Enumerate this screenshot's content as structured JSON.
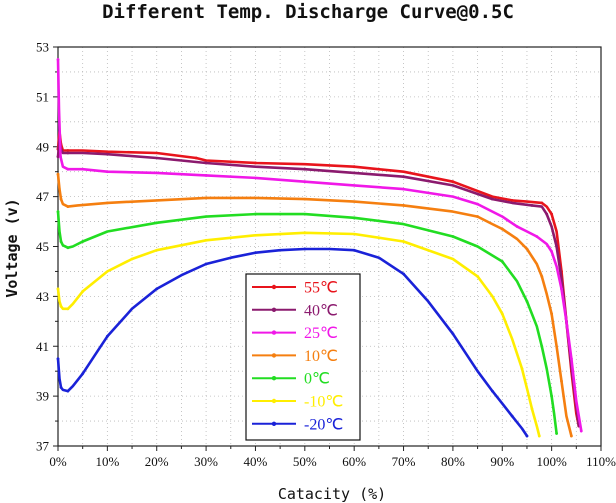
{
  "chart_data": {
    "type": "line",
    "title": "Different Temp. Discharge Curve@0.5C",
    "xlabel": "Catacity (%)",
    "ylabel": "Voltage (v)",
    "xlim": [
      0,
      110
    ],
    "ylim": [
      37,
      53
    ],
    "xticks": [
      "0%",
      "10%",
      "20%",
      "30%",
      "40%",
      "50%",
      "60%",
      "70%",
      "80%",
      "90%",
      "100%",
      "110%"
    ],
    "yticks": [
      "37",
      "39",
      "41",
      "43",
      "45",
      "47",
      "49",
      "51",
      "53"
    ],
    "grid": true,
    "legend_position": "bottom-center",
    "series": [
      {
        "name": "55℃",
        "color": "#e8141c",
        "x": [
          0,
          0.3,
          0.6,
          1,
          2,
          5,
          10,
          20,
          28,
          30,
          40,
          50,
          60,
          70,
          80,
          88,
          92,
          95,
          98,
          99,
          100,
          101,
          102,
          103,
          104,
          105,
          105.5
        ],
        "y": [
          48.9,
          49.6,
          49.1,
          48.85,
          48.85,
          48.85,
          48.8,
          48.75,
          48.55,
          48.45,
          48.35,
          48.3,
          48.2,
          48.0,
          47.6,
          47.0,
          46.85,
          46.8,
          46.75,
          46.6,
          46.3,
          45.6,
          44.0,
          42.0,
          40.0,
          38.3,
          37.8
        ]
      },
      {
        "name": "40℃",
        "color": "#8b1a6e",
        "x": [
          0,
          0.3,
          0.6,
          1,
          2,
          5,
          10,
          20,
          30,
          40,
          50,
          60,
          70,
          80,
          88,
          92,
          96,
          98,
          99,
          100,
          101,
          102,
          103,
          104,
          105,
          105.5
        ],
        "y": [
          48.6,
          49.3,
          48.9,
          48.75,
          48.75,
          48.75,
          48.7,
          48.55,
          48.35,
          48.2,
          48.1,
          47.95,
          47.8,
          47.45,
          46.9,
          46.75,
          46.65,
          46.6,
          46.3,
          45.8,
          45.0,
          43.7,
          42.0,
          40.2,
          38.6,
          37.8
        ]
      },
      {
        "name": "25℃",
        "color": "#f018e8",
        "x": [
          0,
          0.2,
          0.5,
          1,
          2,
          5,
          10,
          20,
          30,
          40,
          50,
          60,
          70,
          80,
          85,
          90,
          93,
          95,
          97,
          99,
          100,
          101,
          102,
          103,
          104,
          105,
          106
        ],
        "y": [
          52.5,
          50.5,
          48.6,
          48.2,
          48.1,
          48.1,
          48.0,
          47.95,
          47.85,
          47.75,
          47.6,
          47.45,
          47.3,
          47.0,
          46.7,
          46.2,
          45.8,
          45.6,
          45.4,
          45.1,
          44.8,
          44.2,
          43.3,
          42.0,
          40.5,
          38.8,
          37.6
        ]
      },
      {
        "name": "10℃",
        "color": "#f57f10",
        "x": [
          0,
          0.3,
          0.6,
          1,
          2,
          4,
          10,
          20,
          30,
          40,
          50,
          60,
          70,
          80,
          85,
          88,
          90,
          93,
          95,
          97,
          98,
          99,
          100,
          101,
          102,
          103,
          104
        ],
        "y": [
          47.9,
          47.3,
          46.9,
          46.7,
          46.6,
          46.65,
          46.75,
          46.85,
          46.95,
          46.95,
          46.9,
          46.8,
          46.65,
          46.4,
          46.2,
          45.9,
          45.7,
          45.3,
          44.9,
          44.3,
          43.8,
          43.1,
          42.3,
          41.0,
          39.6,
          38.2,
          37.4
        ]
      },
      {
        "name": "0℃",
        "color": "#22dd22",
        "x": [
          0,
          0.3,
          0.6,
          1,
          2,
          3,
          5,
          10,
          20,
          30,
          40,
          50,
          60,
          70,
          80,
          85,
          90,
          93,
          95,
          97,
          98,
          99,
          100,
          100.5,
          101
        ],
        "y": [
          46.4,
          45.6,
          45.2,
          45.05,
          44.95,
          45.0,
          45.2,
          45.6,
          45.95,
          46.2,
          46.3,
          46.3,
          46.15,
          45.9,
          45.4,
          45.0,
          44.4,
          43.6,
          42.8,
          41.8,
          41.0,
          40.1,
          39.0,
          38.3,
          37.5
        ]
      },
      {
        "name": "-10℃",
        "color": "#ffee00",
        "x": [
          0,
          0.3,
          0.6,
          1,
          2,
          3,
          5,
          10,
          15,
          20,
          30,
          40,
          50,
          60,
          70,
          80,
          85,
          88,
          90,
          92,
          94,
          95,
          96,
          97,
          97.5
        ],
        "y": [
          43.3,
          42.8,
          42.6,
          42.5,
          42.5,
          42.7,
          43.2,
          44.0,
          44.5,
          44.85,
          45.25,
          45.45,
          45.55,
          45.5,
          45.2,
          44.5,
          43.8,
          43.0,
          42.3,
          41.3,
          40.1,
          39.3,
          38.5,
          37.8,
          37.4
        ]
      },
      {
        "name": "-20℃",
        "color": "#1a22d8",
        "x": [
          0,
          0.3,
          0.6,
          1,
          2,
          3,
          5,
          8,
          10,
          15,
          20,
          25,
          30,
          35,
          40,
          45,
          50,
          55,
          60,
          65,
          70,
          75,
          80,
          85,
          88,
          90,
          92,
          94,
          95
        ],
        "y": [
          40.5,
          39.7,
          39.35,
          39.25,
          39.2,
          39.4,
          39.9,
          40.8,
          41.4,
          42.5,
          43.3,
          43.85,
          44.3,
          44.55,
          44.75,
          44.85,
          44.9,
          44.9,
          44.85,
          44.55,
          43.9,
          42.8,
          41.5,
          40.0,
          39.2,
          38.7,
          38.2,
          37.7,
          37.4
        ]
      }
    ]
  }
}
